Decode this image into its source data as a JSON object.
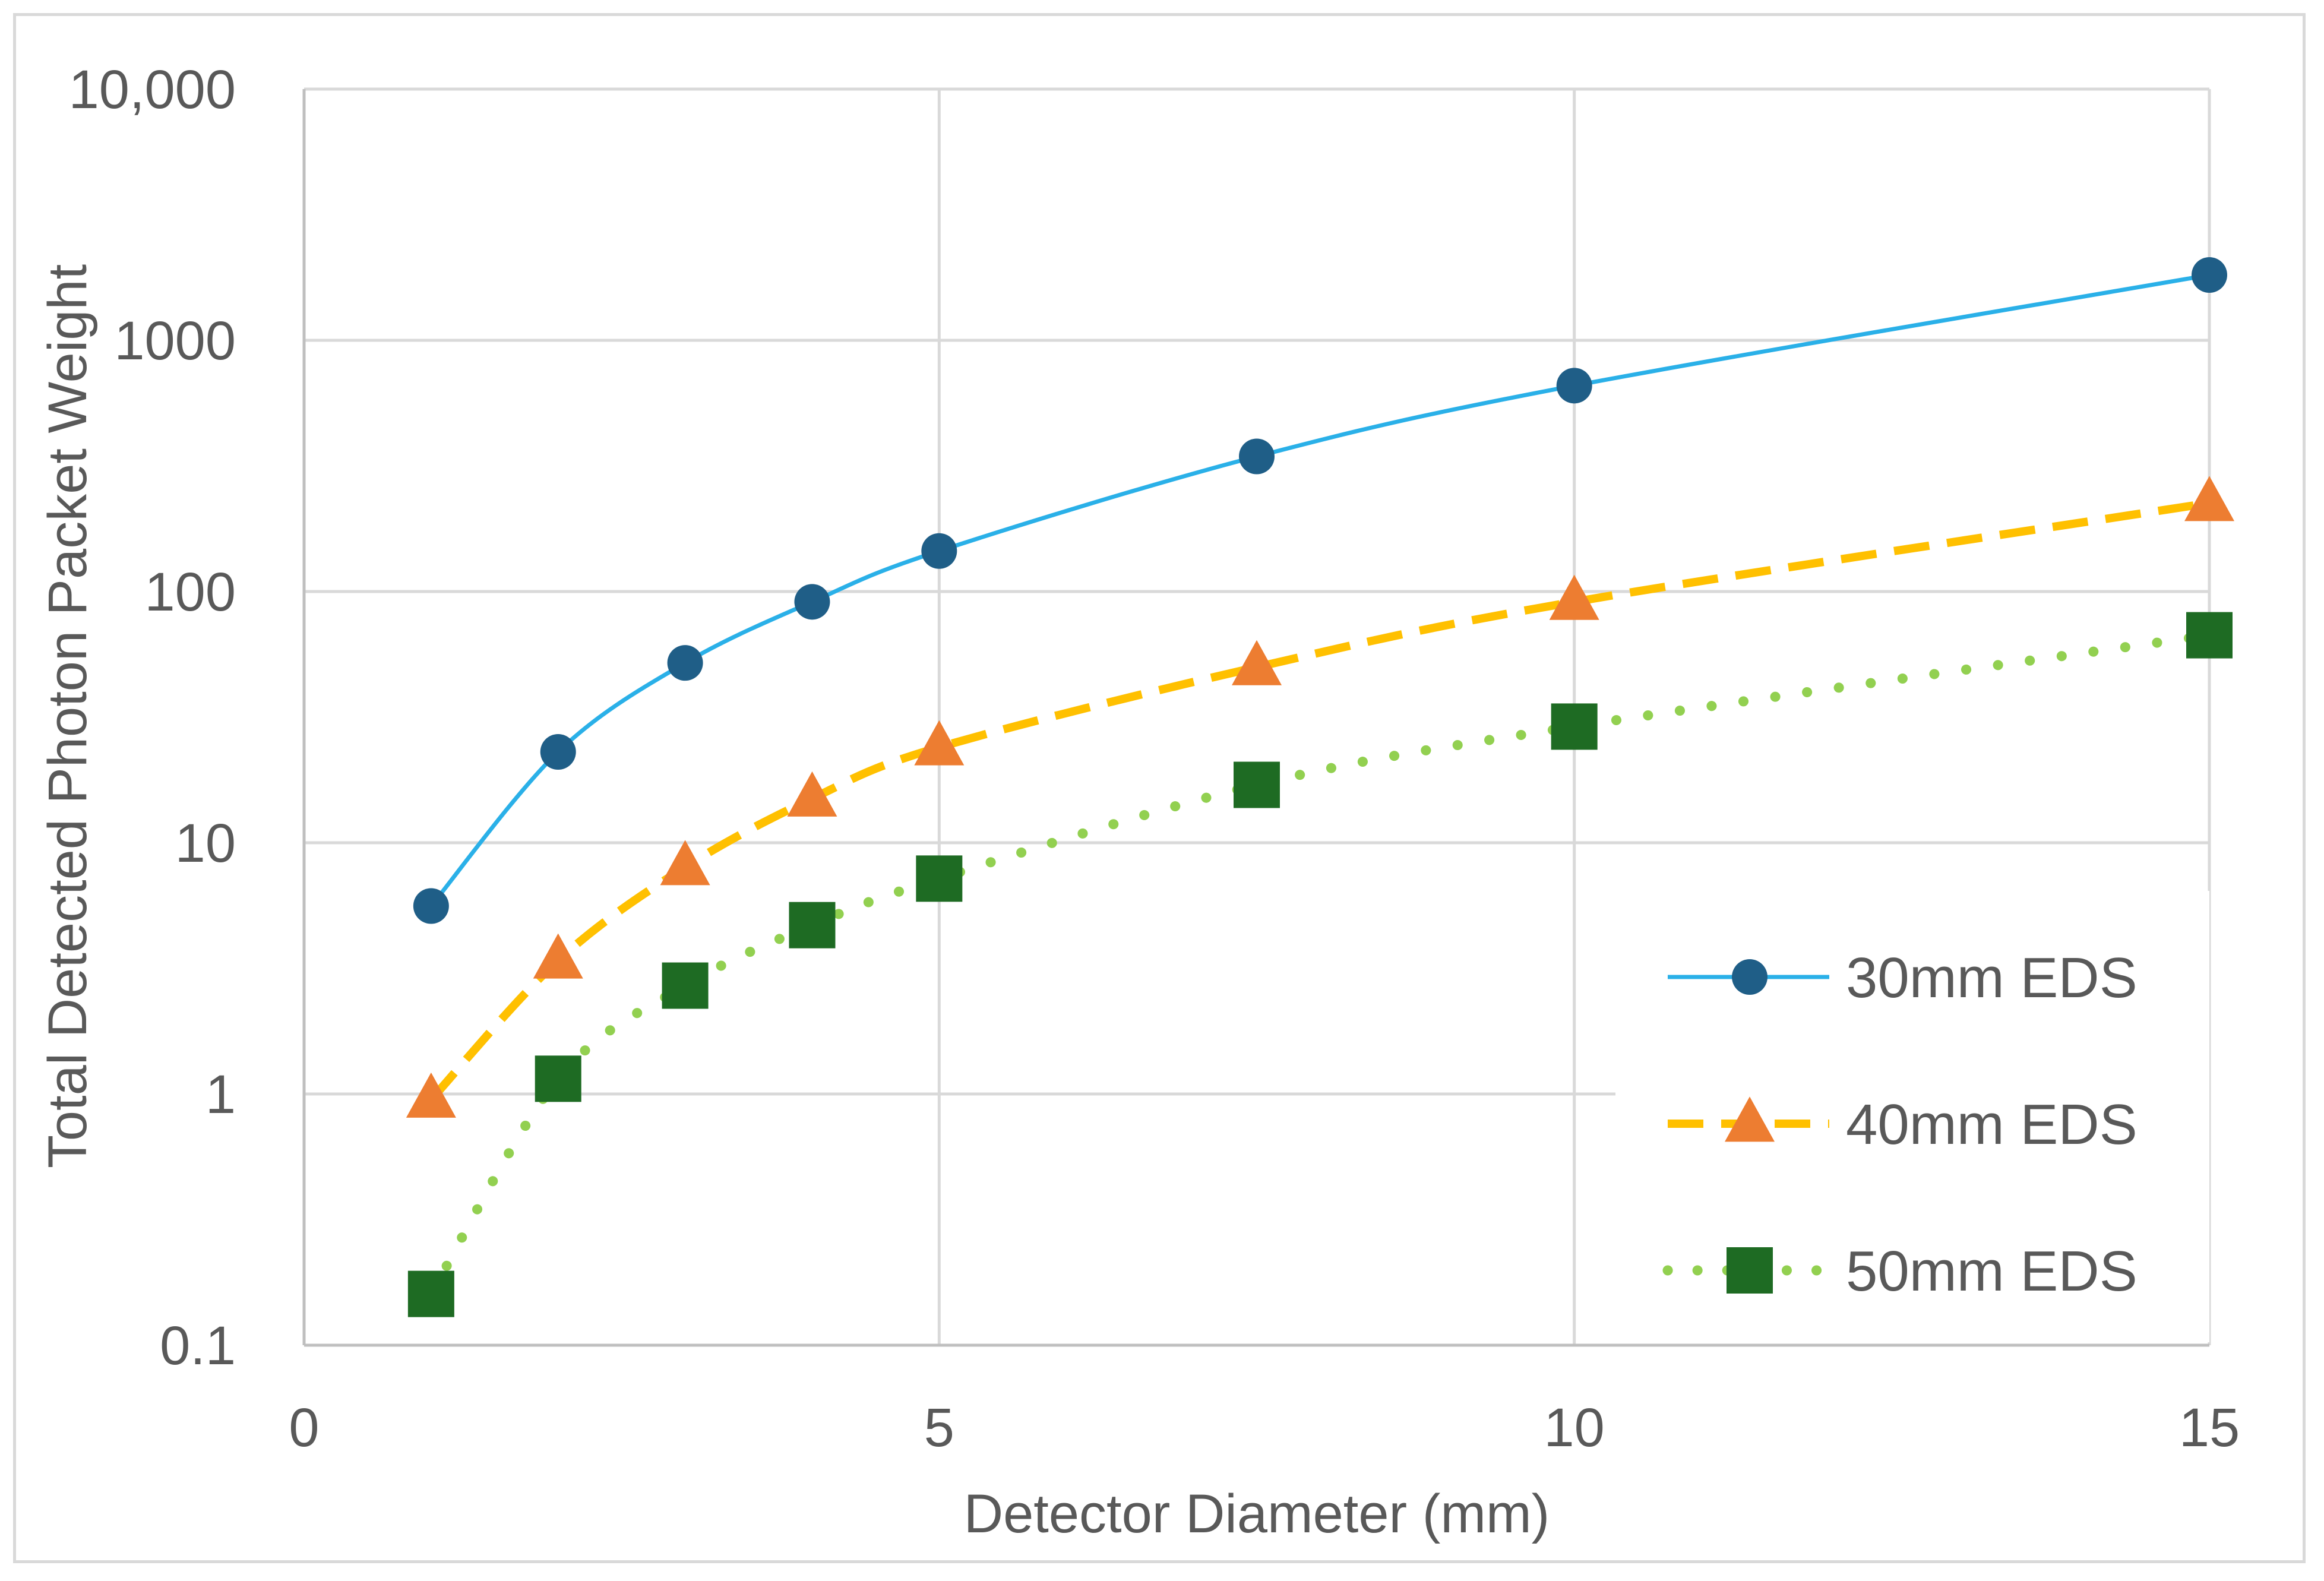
{
  "chart_data": {
    "type": "scatter",
    "xlabel": "Detector Diameter (mm)",
    "ylabel": "Total Detected Photon Packet Weight",
    "xlim": [
      0,
      15
    ],
    "ylim": [
      0.1,
      10000
    ],
    "yscale": "log",
    "x_ticks": [
      0,
      5,
      10,
      15
    ],
    "x_tick_labels": [
      "0",
      "5",
      "10",
      "15"
    ],
    "y_ticks": [
      0.1,
      1,
      10,
      100,
      1000,
      10000
    ],
    "y_tick_labels": [
      "0.1",
      "1",
      "10",
      "100",
      "1000",
      "10,000"
    ],
    "grid": true,
    "legend_position": "bottom-right",
    "series": [
      {
        "name": "30mm EDS",
        "x": [
          1,
          2,
          3,
          4,
          5,
          7.5,
          10,
          15
        ],
        "y": [
          5.6,
          23,
          52,
          91,
          145,
          345,
          660,
          1820
        ],
        "color": "#2ab0e8",
        "marker": "circle",
        "marker_color": "#1f5e87",
        "line": "solid"
      },
      {
        "name": "40mm EDS",
        "x": [
          1,
          2,
          3,
          4,
          5,
          7.5,
          10,
          15
        ],
        "y": [
          0.95,
          3.4,
          8,
          15,
          24,
          50,
          91,
          225
        ],
        "color": "#ffc000",
        "marker": "triangle",
        "marker_color": "#ed7d31",
        "line": "dashed"
      },
      {
        "name": "50mm EDS",
        "x": [
          1,
          2,
          3,
          4,
          5,
          7.5,
          10,
          15
        ],
        "y": [
          0.16,
          1.15,
          2.7,
          4.7,
          7.2,
          17,
          29,
          67
        ],
        "color": "#92d050",
        "marker": "square",
        "marker_color": "#1e6b23",
        "line": "dotted"
      }
    ]
  }
}
